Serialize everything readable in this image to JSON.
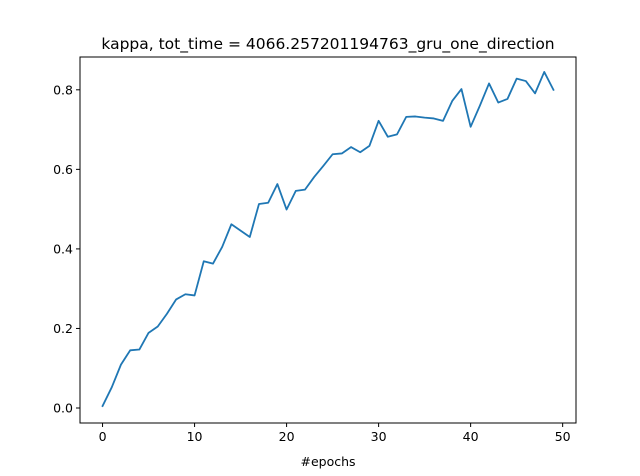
{
  "chart_data": {
    "type": "line",
    "title": "kappa, tot_time = 4066.257201194763_gru_one_direction",
    "xlabel": "#epochs",
    "ylabel": "",
    "xlim": [
      -2.45,
      51.45
    ],
    "ylim": [
      -0.0377,
      0.8825
    ],
    "xticks": [
      0,
      10,
      20,
      30,
      40,
      50
    ],
    "yticks": [
      0.0,
      0.2,
      0.4,
      0.6,
      0.8
    ],
    "xtick_labels": [
      "0",
      "10",
      "20",
      "30",
      "40",
      "50"
    ],
    "ytick_labels": [
      "0.0",
      "0.2",
      "0.4",
      "0.6",
      "0.8"
    ],
    "grid": false,
    "legend": "none",
    "series": [
      {
        "color": "#1f77b4",
        "x": [
          0,
          1,
          2,
          3,
          4,
          5,
          6,
          7,
          8,
          9,
          10,
          11,
          12,
          13,
          14,
          15,
          16,
          17,
          18,
          19,
          20,
          21,
          22,
          23,
          24,
          25,
          26,
          27,
          28,
          29,
          30,
          31,
          32,
          33,
          34,
          35,
          36,
          37,
          38,
          39,
          40,
          41,
          42,
          43,
          44,
          45,
          46,
          47,
          48,
          49
        ],
        "values": [
          0.005,
          0.052,
          0.109,
          0.145,
          0.147,
          0.189,
          0.205,
          0.237,
          0.273,
          0.286,
          0.283,
          0.369,
          0.363,
          0.405,
          0.462,
          0.446,
          0.43,
          0.513,
          0.516,
          0.563,
          0.499,
          0.546,
          0.549,
          0.581,
          0.609,
          0.638,
          0.64,
          0.656,
          0.643,
          0.659,
          0.722,
          0.682,
          0.688,
          0.732,
          0.733,
          0.73,
          0.728,
          0.722,
          0.772,
          0.802,
          0.707,
          0.76,
          0.816,
          0.768,
          0.777,
          0.828,
          0.822,
          0.791,
          0.845,
          0.8
        ]
      }
    ]
  }
}
